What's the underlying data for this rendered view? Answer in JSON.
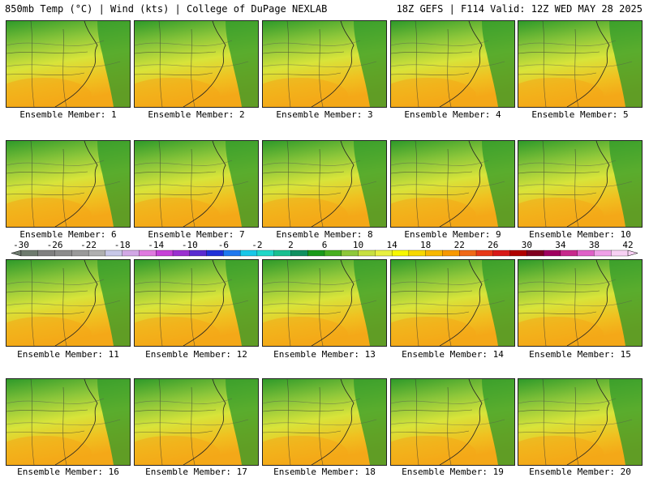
{
  "header": {
    "left": "850mb Temp (°C) | Wind (kts) | College of DuPage NEXLAB",
    "right": "18Z GEFS | F114 Valid: 12Z WED MAY 28 2025"
  },
  "panels": [
    {
      "label": "Ensemble Member: 1"
    },
    {
      "label": "Ensemble Member: 2"
    },
    {
      "label": "Ensemble Member: 3"
    },
    {
      "label": "Ensemble Member: 4"
    },
    {
      "label": "Ensemble Member: 5"
    },
    {
      "label": "Ensemble Member: 6"
    },
    {
      "label": "Ensemble Member: 7"
    },
    {
      "label": "Ensemble Member: 8"
    },
    {
      "label": "Ensemble Member: 9"
    },
    {
      "label": "Ensemble Member: 10"
    },
    {
      "label": "Ensemble Member: 11"
    },
    {
      "label": "Ensemble Member: 12"
    },
    {
      "label": "Ensemble Member: 13"
    },
    {
      "label": "Ensemble Member: 14"
    },
    {
      "label": "Ensemble Member: 15"
    },
    {
      "label": "Ensemble Member: 16"
    },
    {
      "label": "Ensemble Member: 17"
    },
    {
      "label": "Ensemble Member: 18"
    },
    {
      "label": "Ensemble Member: 19"
    },
    {
      "label": "Ensemble Member: 20"
    }
  ],
  "colorbar": {
    "tick_labels": [
      "-30",
      "-26",
      "-22",
      "-18",
      "-14",
      "-10",
      "-6",
      "-2",
      "2",
      "6",
      "10",
      "14",
      "18",
      "22",
      "26",
      "30",
      "34",
      "38",
      "42"
    ],
    "colors": [
      "#6e7b6e",
      "#808080",
      "#8c8c8c",
      "#9a9a9a",
      "#b0b0b0",
      "#c8c8e8",
      "#d2a8e6",
      "#e07ae0",
      "#c840d8",
      "#9b30d0",
      "#5a2ad0",
      "#2030d8",
      "#1e78f0",
      "#18c8e8",
      "#20d8c8",
      "#18c090",
      "#109060",
      "#1a9a1a",
      "#48b020",
      "#8ec83a",
      "#c8e040",
      "#e8f040",
      "#f8f800",
      "#f8d800",
      "#f8b800",
      "#f89800",
      "#f06818",
      "#e83818",
      "#d81818",
      "#b00000",
      "#800020",
      "#a00060",
      "#c8288c",
      "#e060c8",
      "#f0a0e8",
      "#f8d0f4"
    ]
  }
}
